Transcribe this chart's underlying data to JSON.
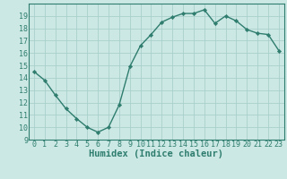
{
  "x": [
    0,
    1,
    2,
    3,
    4,
    5,
    6,
    7,
    8,
    9,
    10,
    11,
    12,
    13,
    14,
    15,
    16,
    17,
    18,
    19,
    20,
    21,
    22,
    23
  ],
  "y": [
    14.5,
    13.8,
    12.6,
    11.5,
    10.7,
    10.0,
    9.6,
    10.0,
    11.8,
    14.9,
    16.6,
    17.5,
    18.5,
    18.9,
    19.2,
    19.2,
    19.5,
    18.4,
    19.0,
    18.6,
    17.9,
    17.6,
    17.5,
    16.2
  ],
  "line_color": "#2e7d6e",
  "marker": "D",
  "marker_size": 2.2,
  "bg_color": "#cce8e4",
  "grid_color": "#aacfcb",
  "axis_color": "#2e7d6e",
  "xlabel": "Humidex (Indice chaleur)",
  "xlim": [
    -0.5,
    23.5
  ],
  "ylim": [
    9,
    20
  ],
  "xticks": [
    0,
    1,
    2,
    3,
    4,
    5,
    6,
    7,
    8,
    9,
    10,
    11,
    12,
    13,
    14,
    15,
    16,
    17,
    18,
    19,
    20,
    21,
    22,
    23
  ],
  "yticks": [
    9,
    10,
    11,
    12,
    13,
    14,
    15,
    16,
    17,
    18,
    19
  ],
  "tick_label_size": 6,
  "xlabel_size": 7.5
}
